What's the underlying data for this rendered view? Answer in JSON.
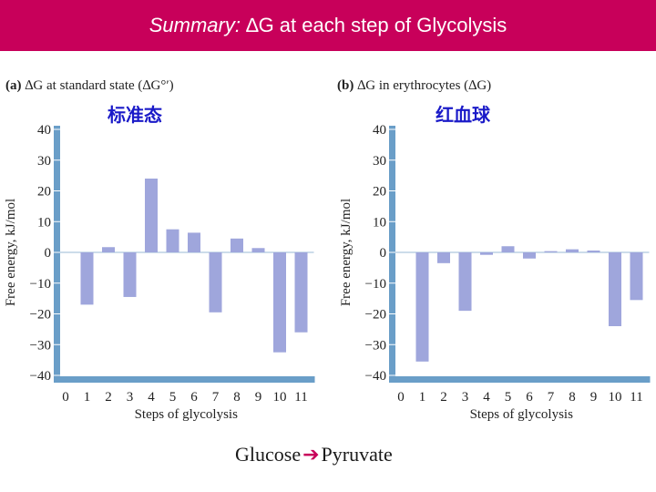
{
  "header": {
    "title_italic": "Summary:",
    "title_rest": "∆G at each step of Glycolysis"
  },
  "footer": {
    "left": "Glucose",
    "right": "Pyruvate"
  },
  "colors": {
    "banner": "#c8005a",
    "bar": "#9fa6dc",
    "axis": "#6a9ec8",
    "chinese": "#1a1ac8",
    "arrow": "#c8005a"
  },
  "chart_data": [
    {
      "type": "bar",
      "panel_label": "(a)",
      "title": "∆G at standard state (∆G°′)",
      "annotation": "标准态",
      "categories": [
        "0",
        "1",
        "2",
        "3",
        "4",
        "5",
        "6",
        "7",
        "8",
        "9",
        "10",
        "11"
      ],
      "values": [
        null,
        -17,
        1.7,
        -14.5,
        24,
        7.5,
        6.4,
        -19.5,
        4.5,
        1.4,
        -32.5,
        -26
      ],
      "xlabel": "Steps of glycolysis",
      "ylabel": "Free energy, kJ/mol",
      "ylim": [
        -40,
        40
      ],
      "yticks": [
        "40",
        "30",
        "20",
        "10",
        "0",
        "−10",
        "−20",
        "−30",
        "−40"
      ]
    },
    {
      "type": "bar",
      "panel_label": "(b)",
      "title": "∆G in erythrocytes (∆G)",
      "annotation": "红血球",
      "categories": [
        "0",
        "1",
        "2",
        "3",
        "4",
        "5",
        "6",
        "7",
        "8",
        "9",
        "10",
        "11"
      ],
      "values": [
        null,
        -35.5,
        -3.5,
        -19,
        -0.8,
        2,
        -2,
        0.4,
        1,
        0.6,
        -24,
        -15.5
      ],
      "xlabel": "Steps of glycolysis",
      "ylabel": "Free energy, kJ/mol",
      "ylim": [
        -40,
        40
      ],
      "yticks": [
        "40",
        "30",
        "20",
        "10",
        "0",
        "−10",
        "−20",
        "−30",
        "−40"
      ]
    }
  ]
}
